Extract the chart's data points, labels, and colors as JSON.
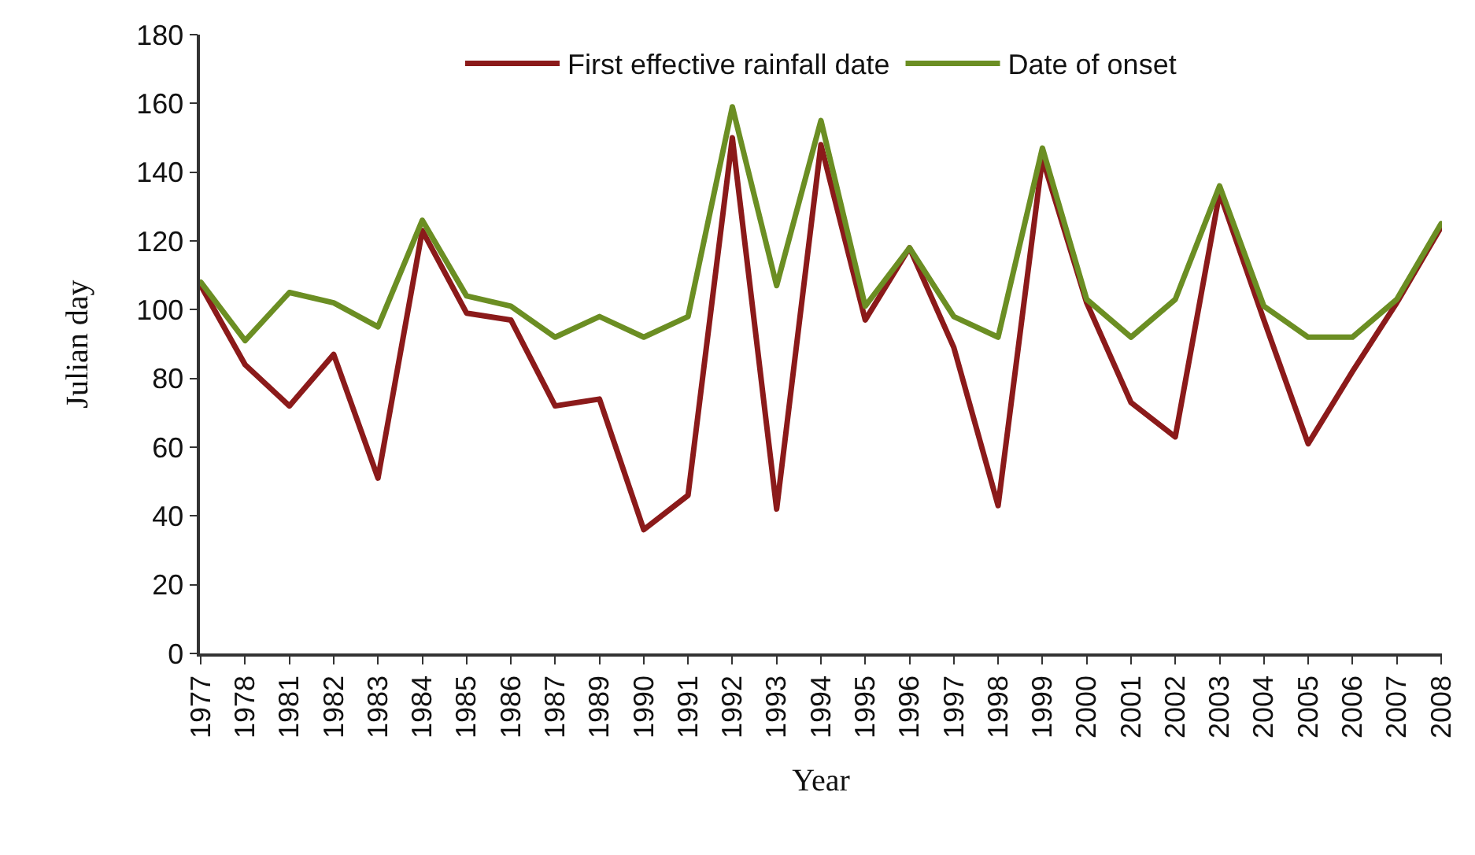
{
  "chart_data": {
    "type": "line",
    "xlabel": "Year",
    "ylabel": "Julian day",
    "categories": [
      "1977",
      "1978",
      "1981",
      "1982",
      "1983",
      "1984",
      "1985",
      "1986",
      "1987",
      "1989",
      "1990",
      "1991",
      "1992",
      "1993",
      "1994",
      "1995",
      "1996",
      "1997",
      "1998",
      "1999",
      "2000",
      "2001",
      "2002",
      "2003",
      "2004",
      "2005",
      "2006",
      "2007",
      "2008"
    ],
    "series": [
      {
        "name": "First effective rainfall date",
        "color": "#8b1a1a",
        "values": [
          107,
          84,
          72,
          87,
          51,
          123,
          99,
          97,
          72,
          74,
          36,
          46,
          150,
          42,
          148,
          97,
          118,
          89,
          43,
          144,
          102,
          73,
          63,
          134,
          97,
          61,
          82,
          102,
          124
        ]
      },
      {
        "name": "Date of onset",
        "color": "#6b8e23",
        "values": [
          108,
          91,
          105,
          102,
          95,
          126,
          104,
          101,
          92,
          98,
          92,
          98,
          159,
          107,
          155,
          101,
          118,
          98,
          92,
          147,
          103,
          92,
          103,
          136,
          101,
          92,
          92,
          103,
          125
        ]
      }
    ],
    "ylim": [
      0,
      180
    ],
    "yticks": [
      0,
      20,
      40,
      60,
      80,
      100,
      120,
      140,
      160,
      180
    ],
    "grid": false,
    "legend": "top",
    "marker": "none",
    "line_style": "solid"
  }
}
